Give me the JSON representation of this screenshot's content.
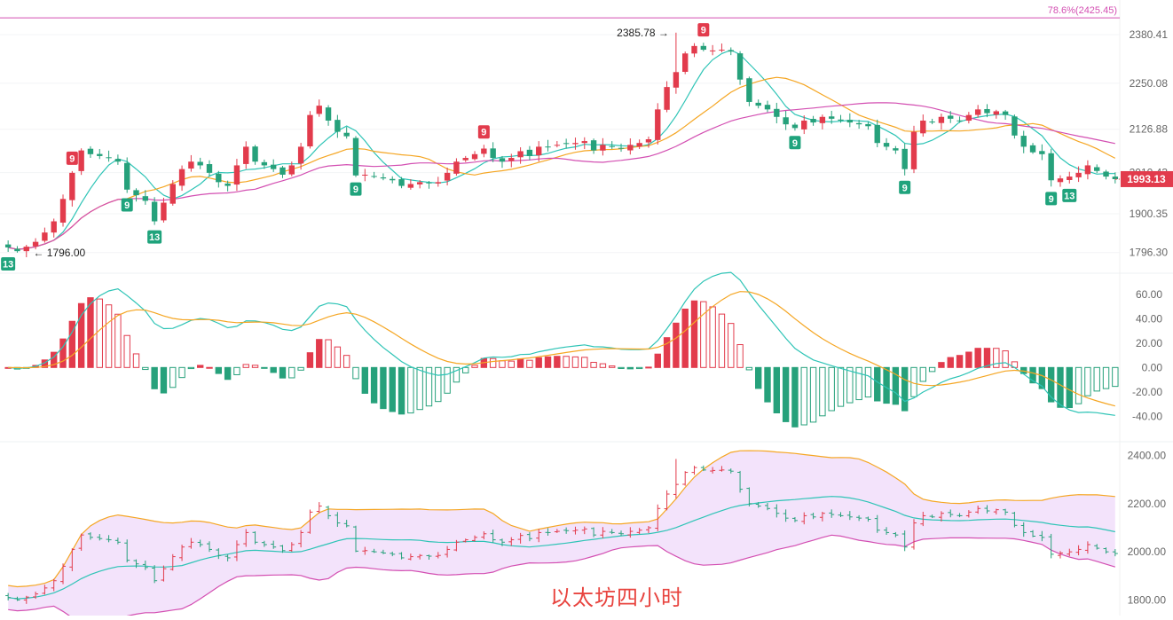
{
  "caption": "以太坊四小时",
  "chart_data": [
    {
      "type": "candlestick",
      "name": "price-panel",
      "y_ticks": [
        2380.41,
        2250.08,
        2126.88,
        2010.43,
        1900.35,
        1796.3
      ],
      "ylim": [
        1760,
        2440
      ],
      "fib_line": {
        "label": "78.6%(2425.45)",
        "value": 2425.45,
        "color": "#d34fb2"
      },
      "last_price": {
        "label": "1993.13",
        "value": 1993.13,
        "color": "#e23b4c"
      },
      "high_annotation": {
        "label": "2385.78",
        "value": 2385.78,
        "index": 73
      },
      "low_annotation": {
        "label": "1796.00",
        "value": 1796.0,
        "index": 1
      },
      "td_markers": [
        {
          "label": "13",
          "index": 0,
          "dir": "down"
        },
        {
          "label": "9",
          "index": 7,
          "dir": "up"
        },
        {
          "label": "9",
          "index": 13,
          "dir": "down"
        },
        {
          "label": "13",
          "index": 16,
          "dir": "down"
        },
        {
          "label": "9",
          "index": 38,
          "dir": "down"
        },
        {
          "label": "9",
          "index": 52,
          "dir": "up"
        },
        {
          "label": "9",
          "index": 76,
          "dir": "up"
        },
        {
          "label": "9",
          "index": 86,
          "dir": "down"
        },
        {
          "label": "9",
          "index": 98,
          "dir": "down"
        },
        {
          "label": "9",
          "index": 114,
          "dir": "down"
        },
        {
          "label": "13",
          "index": 116,
          "dir": "down"
        }
      ],
      "ma_series": [
        {
          "key": "ma1",
          "color": "#2ec4b6",
          "period": 6
        },
        {
          "key": "ma2",
          "color": "#f5a623",
          "period": 14
        },
        {
          "key": "ma3",
          "color": "#d34fb2",
          "period": 28
        }
      ],
      "up_color": "#e23b4c",
      "down_color": "#26a17b"
    },
    {
      "type": "macd",
      "name": "macd-panel",
      "y_ticks": [
        "60.00",
        "40.00",
        "20.00",
        "0.00",
        "-20.00",
        "-40.00"
      ],
      "ylim": [
        -55,
        70
      ],
      "lines": [
        {
          "key": "dif",
          "color": "#2ec4b6"
        },
        {
          "key": "dea",
          "color": "#f5a623"
        }
      ]
    },
    {
      "type": "bollinger",
      "name": "boll-panel",
      "y_ticks": [
        "2400.00",
        "2200.00",
        "2000.00",
        "1800.00"
      ],
      "ylim": [
        1750,
        2450
      ],
      "colors": {
        "upper": "#f5a623",
        "middle": "#2ec4b6",
        "lower": "#d34fb2",
        "fill": "#f3e3fb"
      }
    }
  ],
  "closes": [
    1810,
    1800,
    1812,
    1825,
    1850,
    1880,
    1940,
    2010,
    2070,
    2060,
    2055,
    2050,
    2040,
    1965,
    1950,
    1935,
    1880,
    1930,
    1980,
    2020,
    2040,
    2030,
    2010,
    1985,
    1975,
    2030,
    2080,
    2040,
    2030,
    2020,
    2005,
    2030,
    2080,
    2165,
    2190,
    2150,
    2120,
    2108,
    2003,
    2005,
    2000,
    1995,
    1990,
    1975,
    1980,
    1985,
    1982,
    1985,
    2010,
    2040,
    2050,
    2060,
    2075,
    2050,
    2040,
    2050,
    2068,
    2055,
    2080,
    2080,
    2085,
    2088,
    2090,
    2095,
    2070,
    2085,
    2080,
    2075,
    2085,
    2090,
    2100,
    2180,
    2240,
    2280,
    2330,
    2350,
    2340,
    2338,
    2340,
    2335,
    2260,
    2200,
    2190,
    2180,
    2160,
    2140,
    2130,
    2150,
    2145,
    2160,
    2155,
    2150,
    2145,
    2140,
    2135,
    2090,
    2080,
    2070,
    2020,
    2120,
    2150,
    2145,
    2160,
    2155,
    2150,
    2165,
    2180,
    2170,
    2175,
    2165,
    2110,
    2080,
    2065,
    2060,
    1990,
    1995,
    2000,
    2010,
    2030,
    2015,
    2000,
    1993
  ]
}
